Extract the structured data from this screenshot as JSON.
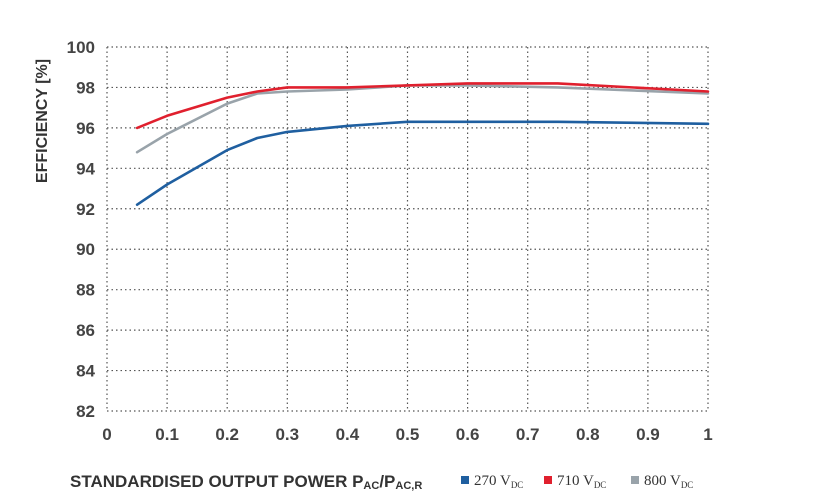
{
  "chart_data": {
    "type": "line",
    "ylabel": "EFFICIENCY [%]",
    "xlabel_main": "STANDARDISED OUTPUT POWER P",
    "xlabel_sub1": "AC",
    "xlabel_sep": "/P",
    "xlabel_sub2": "AC,R",
    "xlim": [
      0,
      1
    ],
    "ylim": [
      82,
      100
    ],
    "x_ticks": [
      "0",
      "0.1",
      "0.2",
      "0.3",
      "0.4",
      "0.5",
      "0.6",
      "0.7",
      "0.8",
      "0.9",
      "1"
    ],
    "y_ticks": [
      "82",
      "84",
      "86",
      "88",
      "90",
      "92",
      "94",
      "96",
      "98",
      "100"
    ],
    "grid": true,
    "legend_position": "bottom-right",
    "series": [
      {
        "legend_main": "270 V",
        "legend_sub": "DC",
        "color": "#1f5fa0",
        "x": [
          0.05,
          0.1,
          0.2,
          0.25,
          0.3,
          0.4,
          0.5,
          0.6,
          0.75,
          1.0
        ],
        "y": [
          92.2,
          93.2,
          94.9,
          95.5,
          95.8,
          96.1,
          96.3,
          96.3,
          96.3,
          96.2
        ]
      },
      {
        "legend_main": "710 V",
        "legend_sub": "DC",
        "color": "#e0202e",
        "x": [
          0.05,
          0.1,
          0.2,
          0.25,
          0.3,
          0.4,
          0.5,
          0.6,
          0.75,
          1.0
        ],
        "y": [
          96.0,
          96.6,
          97.5,
          97.8,
          98.0,
          98.0,
          98.1,
          98.2,
          98.2,
          97.8
        ]
      },
      {
        "legend_main": "800 V",
        "legend_sub": "DC",
        "color": "#99a3aa",
        "x": [
          0.05,
          0.1,
          0.2,
          0.25,
          0.3,
          0.4,
          0.5,
          0.6,
          0.75,
          1.0
        ],
        "y": [
          94.8,
          95.7,
          97.2,
          97.7,
          97.8,
          97.9,
          98.1,
          98.1,
          98.0,
          97.7
        ]
      }
    ]
  }
}
